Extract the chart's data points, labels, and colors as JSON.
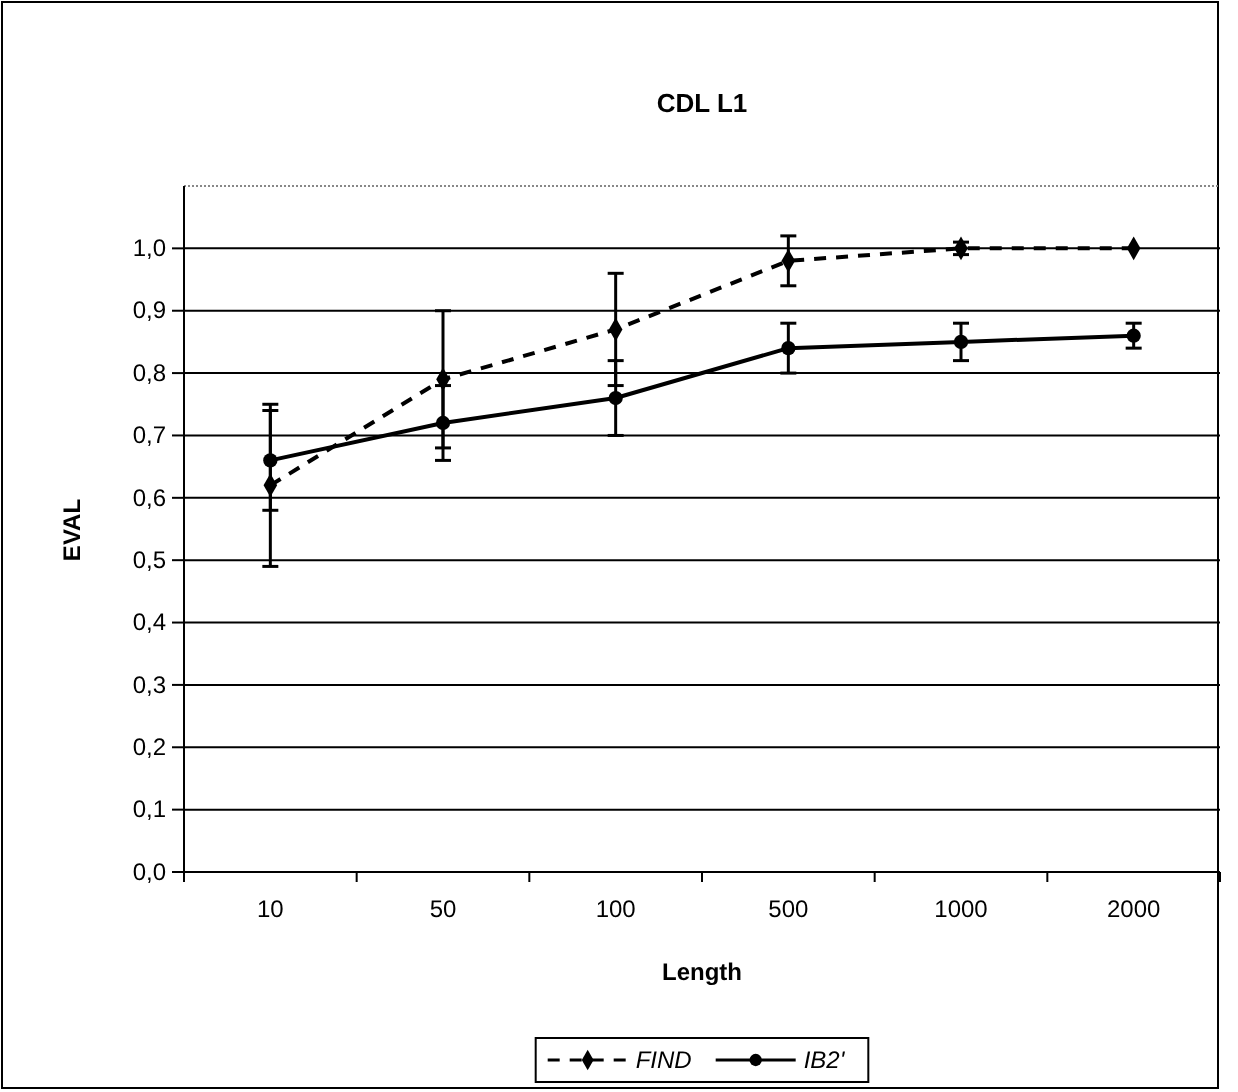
{
  "chart_data": {
    "type": "line",
    "title": "CDL L1",
    "xlabel": "Length",
    "ylabel": "EVAL",
    "categories": [
      "10",
      "50",
      "100",
      "500",
      "1000",
      "2000"
    ],
    "series": [
      {
        "name": "FIND",
        "color": "#000000",
        "line_style": "dashed",
        "marker": "diamond",
        "values": [
          0.62,
          0.79,
          0.87,
          0.98,
          1.0,
          1.0
        ],
        "errors": [
          0.13,
          0.11,
          0.09,
          0.04,
          0.01,
          null
        ]
      },
      {
        "name": "IB2'",
        "color": "#000000",
        "line_style": "solid",
        "marker": "circle",
        "values": [
          0.66,
          0.72,
          0.76,
          0.84,
          0.85,
          0.86
        ],
        "errors": [
          0.08,
          0.06,
          0.06,
          0.04,
          0.03,
          0.02
        ]
      }
    ],
    "ylim": [
      0,
      1.1
    ],
    "yticks": [
      {
        "value": 0,
        "label": "0,0"
      },
      {
        "value": 0.1,
        "label": "0,1"
      },
      {
        "value": 0.2,
        "label": "0,2"
      },
      {
        "value": 0.3,
        "label": "0,3"
      },
      {
        "value": 0.4,
        "label": "0,4"
      },
      {
        "value": 0.5,
        "label": "0,5"
      },
      {
        "value": 0.6,
        "label": "0,6"
      },
      {
        "value": 0.7,
        "label": "0,7"
      },
      {
        "value": 0.8,
        "label": "0,8"
      },
      {
        "value": 0.9,
        "label": "0,9"
      },
      {
        "value": 1.0,
        "label": "1,0"
      }
    ],
    "grid": "y",
    "legend": "bottom"
  }
}
